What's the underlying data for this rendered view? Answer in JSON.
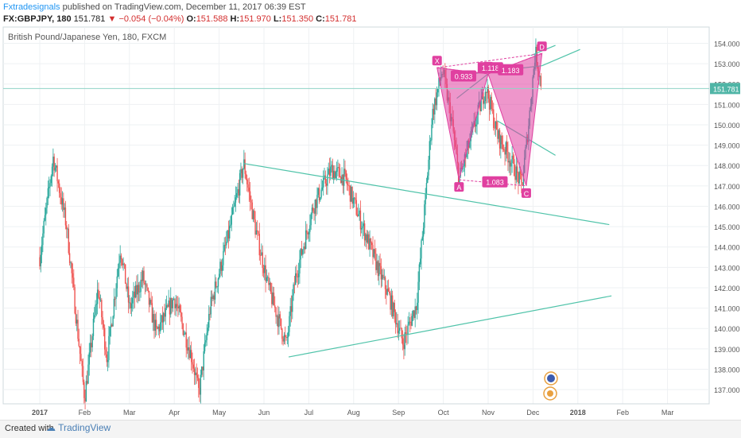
{
  "header": {
    "author": "Fxtradesignals",
    "published": " published on TradingView.com, December 11, 2017 06:39 EST",
    "symbol": "FX:GBPJPY, 180",
    "last": "151.781",
    "change_arrow": "▼",
    "change": "−0.054 (−0.04%)",
    "o_label": "O:",
    "o_value": "151.588",
    "h_label": "H:",
    "h_value": "151.970",
    "l_label": "L:",
    "l_value": "151.350",
    "c_label": "C:",
    "c_value": "151.781"
  },
  "footer": {
    "created_with": "Created with",
    "brand": "TradingView"
  },
  "colors": {
    "bull": "#26a69a",
    "bear": "#ef5350",
    "trend": "#4fc3a9",
    "pattern": "#e040a0",
    "price_line": "#8fd3c7",
    "price_badge": "#4fb5a6"
  },
  "chart_data": {
    "type": "candlestick",
    "title": "British Pound/Japanese Yen, 180, FXCM",
    "ylim": [
      136.3,
      154.8
    ],
    "y_ticks": [
      137.0,
      138.0,
      139.0,
      140.0,
      141.0,
      142.0,
      143.0,
      144.0,
      145.0,
      146.0,
      147.0,
      148.0,
      149.0,
      150.0,
      151.0,
      152.0,
      153.0,
      154.0
    ],
    "x_ticks": [
      "2017",
      "Feb",
      "Mar",
      "Apr",
      "May",
      "Jun",
      "Jul",
      "Aug",
      "Sep",
      "Oct",
      "Nov",
      "Dec",
      "2018",
      "Feb",
      "Mar"
    ],
    "current_price": 151.781,
    "price_path": [
      {
        "x": 0.0,
        "y": 143.5
      },
      {
        "x": 0.3,
        "y": 148.4
      },
      {
        "x": 0.6,
        "y": 145.0
      },
      {
        "x": 1.0,
        "y": 136.6
      },
      {
        "x": 1.3,
        "y": 142.0
      },
      {
        "x": 1.5,
        "y": 138.5
      },
      {
        "x": 1.8,
        "y": 144.0
      },
      {
        "x": 2.0,
        "y": 141.0
      },
      {
        "x": 2.3,
        "y": 142.5
      },
      {
        "x": 2.6,
        "y": 139.8
      },
      {
        "x": 3.0,
        "y": 141.5
      },
      {
        "x": 3.4,
        "y": 138.5
      },
      {
        "x": 3.55,
        "y": 136.8
      },
      {
        "x": 3.8,
        "y": 141.0
      },
      {
        "x": 4.2,
        "y": 144.5
      },
      {
        "x": 4.55,
        "y": 148.1
      },
      {
        "x": 4.8,
        "y": 145.0
      },
      {
        "x": 5.1,
        "y": 142.0
      },
      {
        "x": 5.5,
        "y": 139.2
      },
      {
        "x": 5.7,
        "y": 142.5
      },
      {
        "x": 6.1,
        "y": 146.0
      },
      {
        "x": 6.5,
        "y": 147.8
      },
      {
        "x": 6.8,
        "y": 147.4
      },
      {
        "x": 7.2,
        "y": 145.0
      },
      {
        "x": 7.5,
        "y": 143.2
      },
      {
        "x": 7.8,
        "y": 141.5
      },
      {
        "x": 8.1,
        "y": 139.3
      },
      {
        "x": 8.4,
        "y": 141.2
      },
      {
        "x": 8.6,
        "y": 146.3
      },
      {
        "x": 8.75,
        "y": 150.5
      },
      {
        "x": 8.98,
        "y": 152.7
      },
      {
        "x": 9.2,
        "y": 150.0
      },
      {
        "x": 9.35,
        "y": 147.3
      },
      {
        "x": 9.7,
        "y": 150.0
      },
      {
        "x": 9.95,
        "y": 151.9
      },
      {
        "x": 10.2,
        "y": 149.5
      },
      {
        "x": 10.45,
        "y": 148.5
      },
      {
        "x": 10.75,
        "y": 147.0
      },
      {
        "x": 10.9,
        "y": 150.0
      },
      {
        "x": 11.05,
        "y": 153.6
      },
      {
        "x": 11.2,
        "y": 151.8
      }
    ],
    "trendlines": [
      {
        "x1": 4.55,
        "y1": 148.1,
        "x2": 12.7,
        "y2": 145.1
      },
      {
        "x1": 5.55,
        "y1": 138.6,
        "x2": 12.75,
        "y2": 141.6
      },
      {
        "x1": 9.2,
        "y1": 152.4,
        "x2": 11.2,
        "y2": 152.9
      },
      {
        "x1": 11.2,
        "y1": 152.9,
        "x2": 12.05,
        "y2": 153.7
      },
      {
        "x1": 9.3,
        "y1": 151.3,
        "x2": 10.0,
        "y2": 152.5
      },
      {
        "x1": 10.2,
        "y1": 150.2,
        "x2": 11.5,
        "y2": 148.5
      },
      {
        "x1": 10.95,
        "y1": 153.4,
        "x2": 11.5,
        "y2": 153.9
      }
    ],
    "pattern": {
      "points": [
        {
          "label": "X",
          "x": 8.86,
          "y": 152.8
        },
        {
          "label": "A",
          "x": 9.35,
          "y": 147.3
        },
        {
          "label": "B",
          "x": 10.0,
          "y": 152.5
        },
        {
          "label": "C",
          "x": 10.85,
          "y": 147.0
        },
        {
          "label": "D",
          "x": 11.2,
          "y": 153.5
        }
      ],
      "ratios": [
        {
          "label": "0.933",
          "x": 9.45,
          "y": 152.4
        },
        {
          "label": "1.118",
          "x": 10.05,
          "y": 152.8
        },
        {
          "label": "1.183",
          "x": 10.5,
          "y": 152.7
        },
        {
          "label": "1.083",
          "x": 10.15,
          "y": 147.2
        }
      ]
    }
  }
}
